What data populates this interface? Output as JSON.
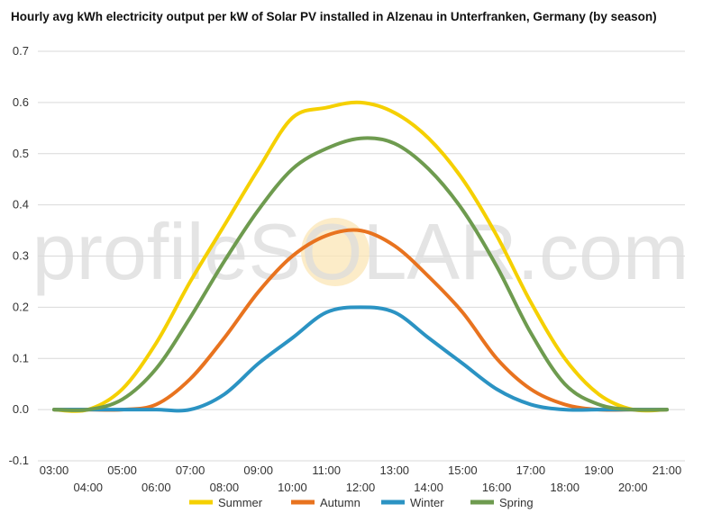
{
  "chart_data": {
    "type": "line",
    "title": "Hourly avg kWh electricity output per kW of Solar PV installed in Alzenau in Unterfranken, Germany (by season)",
    "xlabel": "",
    "ylabel": "",
    "watermark": "profileSOLAR.com",
    "ylim": [
      -0.1,
      0.7
    ],
    "yticks": [
      "-0.1",
      "0.0",
      "0.1",
      "0.2",
      "0.3",
      "0.4",
      "0.5",
      "0.6",
      "0.7"
    ],
    "ytick_values": [
      -0.1,
      0.0,
      0.1,
      0.2,
      0.3,
      0.4,
      0.5,
      0.6,
      0.7
    ],
    "x": [
      "03:00",
      "04:00",
      "05:00",
      "06:00",
      "07:00",
      "08:00",
      "09:00",
      "10:00",
      "11:00",
      "12:00",
      "13:00",
      "14:00",
      "15:00",
      "16:00",
      "17:00",
      "18:00",
      "19:00",
      "20:00",
      "21:00"
    ],
    "grid": true,
    "legend_position": "bottom",
    "series": [
      {
        "name": "Summer",
        "color": "#f5d000",
        "values": [
          0.0,
          0.0,
          0.04,
          0.13,
          0.25,
          0.36,
          0.47,
          0.57,
          0.59,
          0.6,
          0.58,
          0.53,
          0.45,
          0.34,
          0.21,
          0.1,
          0.03,
          0.0,
          0.0
        ]
      },
      {
        "name": "Autumn",
        "color": "#e8731f",
        "values": [
          0.0,
          0.0,
          0.0,
          0.01,
          0.06,
          0.14,
          0.23,
          0.3,
          0.34,
          0.35,
          0.32,
          0.26,
          0.19,
          0.1,
          0.04,
          0.01,
          0.0,
          0.0,
          0.0
        ]
      },
      {
        "name": "Winter",
        "color": "#2b93c3",
        "values": [
          0.0,
          0.0,
          0.0,
          0.0,
          0.0,
          0.03,
          0.09,
          0.14,
          0.19,
          0.2,
          0.19,
          0.14,
          0.09,
          0.04,
          0.01,
          0.0,
          0.0,
          0.0,
          0.0
        ]
      },
      {
        "name": "Spring",
        "color": "#6e9b4f",
        "values": [
          0.0,
          0.0,
          0.02,
          0.08,
          0.18,
          0.29,
          0.39,
          0.47,
          0.51,
          0.53,
          0.52,
          0.47,
          0.39,
          0.28,
          0.15,
          0.05,
          0.01,
          0.0,
          0.0
        ]
      }
    ]
  }
}
